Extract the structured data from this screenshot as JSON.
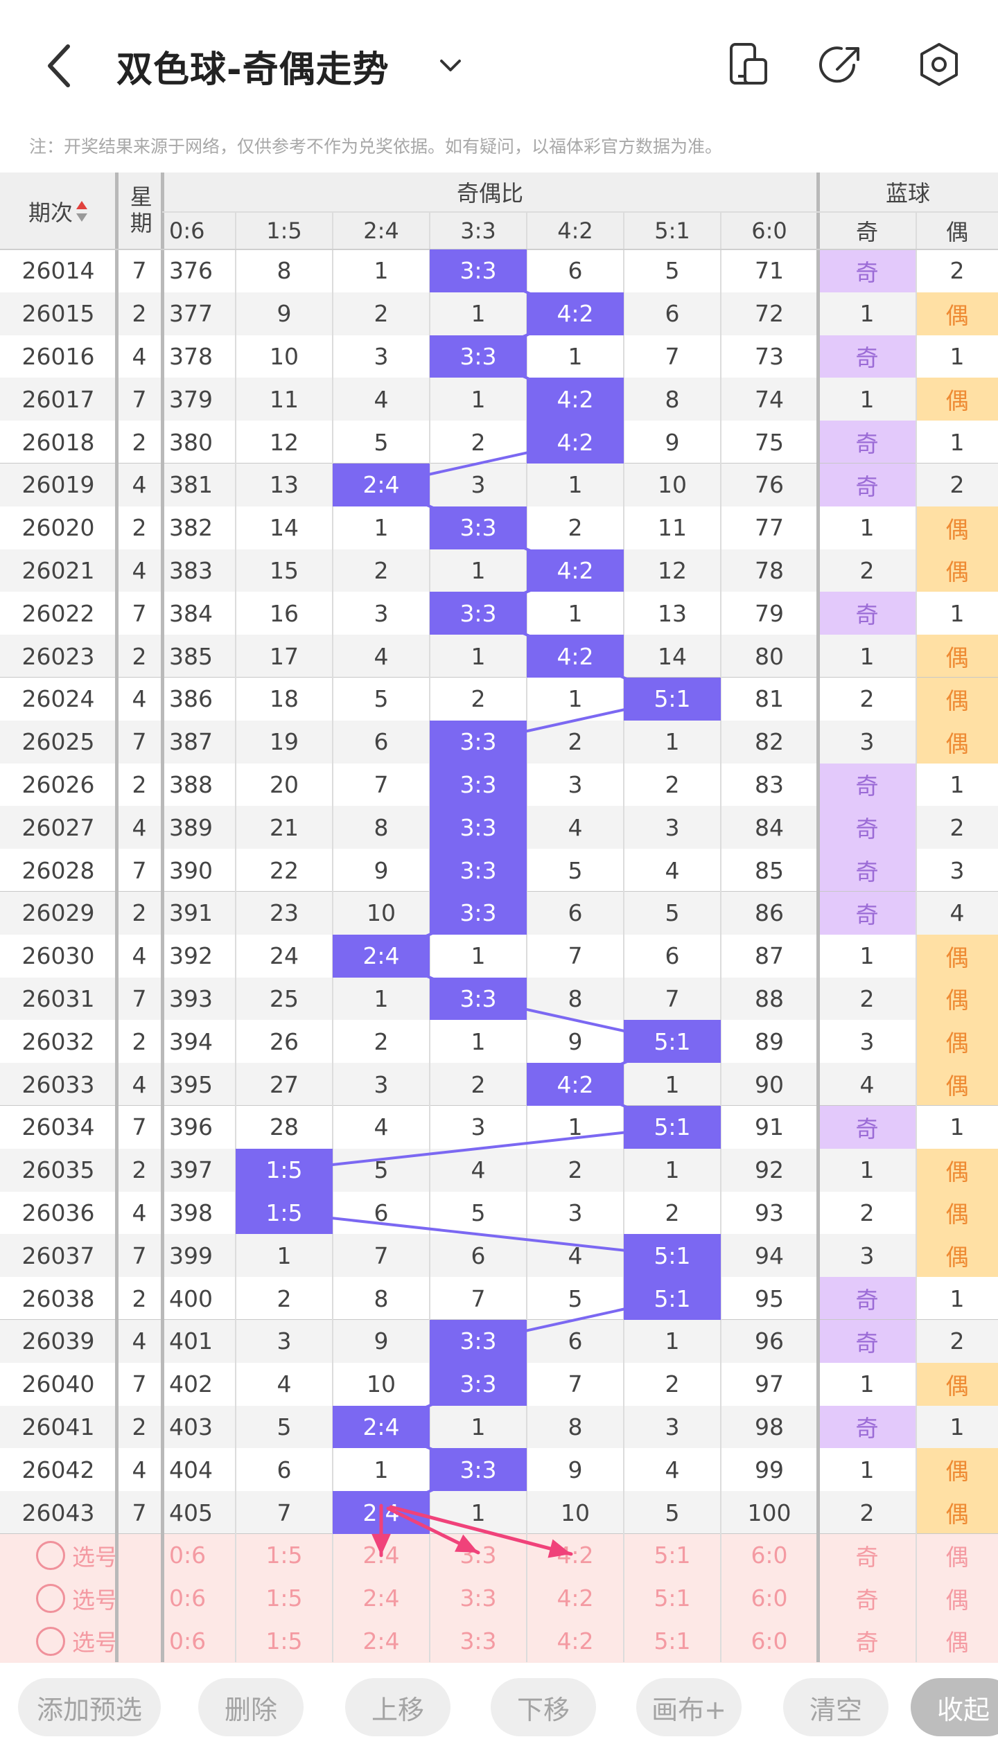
{
  "header": {
    "title": "双色球-奇偶走势",
    "notice": "注：开奖结果来源于网络，仅供参考不作为兑奖依据。如有疑问，以福体彩官方数据为准。",
    "icons": [
      "back-icon",
      "chevron-down-icon",
      "phone-layout-icon",
      "share-icon",
      "settings-icon"
    ]
  },
  "table": {
    "col_headers": {
      "period": "期次",
      "weekday": "星期",
      "ratio_group": "奇偶比",
      "blue_group": "蓝球",
      "ratios": [
        "0:6",
        "1:5",
        "2:4",
        "3:3",
        "4:2",
        "5:1",
        "6:0"
      ],
      "blue": [
        "奇",
        "偶"
      ]
    },
    "rows": [
      {
        "period": "26014",
        "week": "7",
        "ratio": "3:3",
        "vals": [
          "376",
          "8",
          "1",
          "3:3",
          "6",
          "5",
          "71"
        ],
        "blue": [
          "奇",
          "2"
        ],
        "blueHit": 0
      },
      {
        "period": "26015",
        "week": "2",
        "ratio": "4:2",
        "vals": [
          "377",
          "9",
          "2",
          "1",
          "4:2",
          "6",
          "72"
        ],
        "blue": [
          "1",
          "偶"
        ],
        "blueHit": 1
      },
      {
        "period": "26016",
        "week": "4",
        "ratio": "3:3",
        "vals": [
          "378",
          "10",
          "3",
          "3:3",
          "1",
          "7",
          "73"
        ],
        "blue": [
          "奇",
          "1"
        ],
        "blueHit": 0
      },
      {
        "period": "26017",
        "week": "7",
        "ratio": "4:2",
        "vals": [
          "379",
          "11",
          "4",
          "1",
          "4:2",
          "8",
          "74"
        ],
        "blue": [
          "1",
          "偶"
        ],
        "blueHit": 1
      },
      {
        "period": "26018",
        "week": "2",
        "ratio": "4:2",
        "vals": [
          "380",
          "12",
          "5",
          "2",
          "4:2",
          "9",
          "75"
        ],
        "blue": [
          "奇",
          "1"
        ],
        "blueHit": 0
      },
      {
        "period": "26019",
        "week": "4",
        "ratio": "2:4",
        "vals": [
          "381",
          "13",
          "2:4",
          "3",
          "1",
          "10",
          "76"
        ],
        "blue": [
          "奇",
          "2"
        ],
        "blueHit": 0
      },
      {
        "period": "26020",
        "week": "2",
        "ratio": "3:3",
        "vals": [
          "382",
          "14",
          "1",
          "3:3",
          "2",
          "11",
          "77"
        ],
        "blue": [
          "1",
          "偶"
        ],
        "blueHit": 1
      },
      {
        "period": "26021",
        "week": "4",
        "ratio": "4:2",
        "vals": [
          "383",
          "15",
          "2",
          "1",
          "4:2",
          "12",
          "78"
        ],
        "blue": [
          "2",
          "偶"
        ],
        "blueHit": 1
      },
      {
        "period": "26022",
        "week": "7",
        "ratio": "3:3",
        "vals": [
          "384",
          "16",
          "3",
          "3:3",
          "1",
          "13",
          "79"
        ],
        "blue": [
          "奇",
          "1"
        ],
        "blueHit": 0
      },
      {
        "period": "26023",
        "week": "2",
        "ratio": "4:2",
        "vals": [
          "385",
          "17",
          "4",
          "1",
          "4:2",
          "14",
          "80"
        ],
        "blue": [
          "1",
          "偶"
        ],
        "blueHit": 1
      },
      {
        "period": "26024",
        "week": "4",
        "ratio": "5:1",
        "vals": [
          "386",
          "18",
          "5",
          "2",
          "1",
          "5:1",
          "81"
        ],
        "blue": [
          "2",
          "偶"
        ],
        "blueHit": 1
      },
      {
        "period": "26025",
        "week": "7",
        "ratio": "3:3",
        "vals": [
          "387",
          "19",
          "6",
          "3:3",
          "2",
          "1",
          "82"
        ],
        "blue": [
          "3",
          "偶"
        ],
        "blueHit": 1
      },
      {
        "period": "26026",
        "week": "2",
        "ratio": "3:3",
        "vals": [
          "388",
          "20",
          "7",
          "3:3",
          "3",
          "2",
          "83"
        ],
        "blue": [
          "奇",
          "1"
        ],
        "blueHit": 0
      },
      {
        "period": "26027",
        "week": "4",
        "ratio": "3:3",
        "vals": [
          "389",
          "21",
          "8",
          "3:3",
          "4",
          "3",
          "84"
        ],
        "blue": [
          "奇",
          "2"
        ],
        "blueHit": 0
      },
      {
        "period": "26028",
        "week": "7",
        "ratio": "3:3",
        "vals": [
          "390",
          "22",
          "9",
          "3:3",
          "5",
          "4",
          "85"
        ],
        "blue": [
          "奇",
          "3"
        ],
        "blueHit": 0
      },
      {
        "period": "26029",
        "week": "2",
        "ratio": "3:3",
        "vals": [
          "391",
          "23",
          "10",
          "3:3",
          "6",
          "5",
          "86"
        ],
        "blue": [
          "奇",
          "4"
        ],
        "blueHit": 0
      },
      {
        "period": "26030",
        "week": "4",
        "ratio": "2:4",
        "vals": [
          "392",
          "24",
          "2:4",
          "1",
          "7",
          "6",
          "87"
        ],
        "blue": [
          "1",
          "偶"
        ],
        "blueHit": 1
      },
      {
        "period": "26031",
        "week": "7",
        "ratio": "3:3",
        "vals": [
          "393",
          "25",
          "1",
          "3:3",
          "8",
          "7",
          "88"
        ],
        "blue": [
          "2",
          "偶"
        ],
        "blueHit": 1
      },
      {
        "period": "26032",
        "week": "2",
        "ratio": "5:1",
        "vals": [
          "394",
          "26",
          "2",
          "1",
          "9",
          "5:1",
          "89"
        ],
        "blue": [
          "3",
          "偶"
        ],
        "blueHit": 1
      },
      {
        "period": "26033",
        "week": "4",
        "ratio": "4:2",
        "vals": [
          "395",
          "27",
          "3",
          "2",
          "4:2",
          "1",
          "90"
        ],
        "blue": [
          "4",
          "偶"
        ],
        "blueHit": 1
      },
      {
        "period": "26034",
        "week": "7",
        "ratio": "5:1",
        "vals": [
          "396",
          "28",
          "4",
          "3",
          "1",
          "5:1",
          "91"
        ],
        "blue": [
          "奇",
          "1"
        ],
        "blueHit": 0
      },
      {
        "period": "26035",
        "week": "2",
        "ratio": "1:5",
        "vals": [
          "397",
          "1:5",
          "5",
          "4",
          "2",
          "1",
          "92"
        ],
        "blue": [
          "1",
          "偶"
        ],
        "blueHit": 1
      },
      {
        "period": "26036",
        "week": "4",
        "ratio": "1:5",
        "vals": [
          "398",
          "1:5",
          "6",
          "5",
          "3",
          "2",
          "93"
        ],
        "blue": [
          "2",
          "偶"
        ],
        "blueHit": 1
      },
      {
        "period": "26037",
        "week": "7",
        "ratio": "5:1",
        "vals": [
          "399",
          "1",
          "7",
          "6",
          "4",
          "5:1",
          "94"
        ],
        "blue": [
          "3",
          "偶"
        ],
        "blueHit": 1
      },
      {
        "period": "26038",
        "week": "2",
        "ratio": "5:1",
        "vals": [
          "400",
          "2",
          "8",
          "7",
          "5",
          "5:1",
          "95"
        ],
        "blue": [
          "奇",
          "1"
        ],
        "blueHit": 0
      },
      {
        "period": "26039",
        "week": "4",
        "ratio": "3:3",
        "vals": [
          "401",
          "3",
          "9",
          "3:3",
          "6",
          "1",
          "96"
        ],
        "blue": [
          "奇",
          "2"
        ],
        "blueHit": 0
      },
      {
        "period": "26040",
        "week": "7",
        "ratio": "3:3",
        "vals": [
          "402",
          "4",
          "10",
          "3:3",
          "7",
          "2",
          "97"
        ],
        "blue": [
          "1",
          "偶"
        ],
        "blueHit": 1
      },
      {
        "period": "26041",
        "week": "2",
        "ratio": "2:4",
        "vals": [
          "403",
          "5",
          "2:4",
          "1",
          "8",
          "3",
          "98"
        ],
        "blue": [
          "奇",
          "1"
        ],
        "blueHit": 0
      },
      {
        "period": "26042",
        "week": "4",
        "ratio": "3:3",
        "vals": [
          "404",
          "6",
          "1",
          "3:3",
          "9",
          "4",
          "99"
        ],
        "blue": [
          "1",
          "偶"
        ],
        "blueHit": 1
      },
      {
        "period": "26043",
        "week": "7",
        "ratio": "2:4",
        "vals": [
          "405",
          "7",
          "2:4",
          "1",
          "10",
          "5",
          "100"
        ],
        "blue": [
          "2",
          "偶"
        ],
        "blueHit": 1
      }
    ],
    "pick_rows": [
      {
        "label": "选号",
        "vals": [
          "0:6",
          "1:5",
          "2:4",
          "3:3",
          "4:2",
          "5:1",
          "6:0"
        ],
        "blue": [
          "奇",
          "偶"
        ]
      },
      {
        "label": "选号",
        "vals": [
          "0:6",
          "1:5",
          "2:4",
          "3:3",
          "4:2",
          "5:1",
          "6:0"
        ],
        "blue": [
          "奇",
          "偶"
        ]
      },
      {
        "label": "选号",
        "vals": [
          "0:6",
          "1:5",
          "2:4",
          "3:3",
          "4:2",
          "5:1",
          "6:0"
        ],
        "blue": [
          "奇",
          "偶"
        ]
      }
    ]
  },
  "toolbar": {
    "buttons": [
      "添加预选",
      "删除",
      "上移",
      "下移",
      "画布+",
      "清空",
      "收起"
    ]
  },
  "colors": {
    "hit": "#7b68f2",
    "odd_blue_bg": "#e3c9fb",
    "even_blue_bg": "#ffe0a4",
    "pick_text": "#f49aa2",
    "pick_bg": "#fde8e6",
    "annotation_arrow": "#f0427a"
  }
}
